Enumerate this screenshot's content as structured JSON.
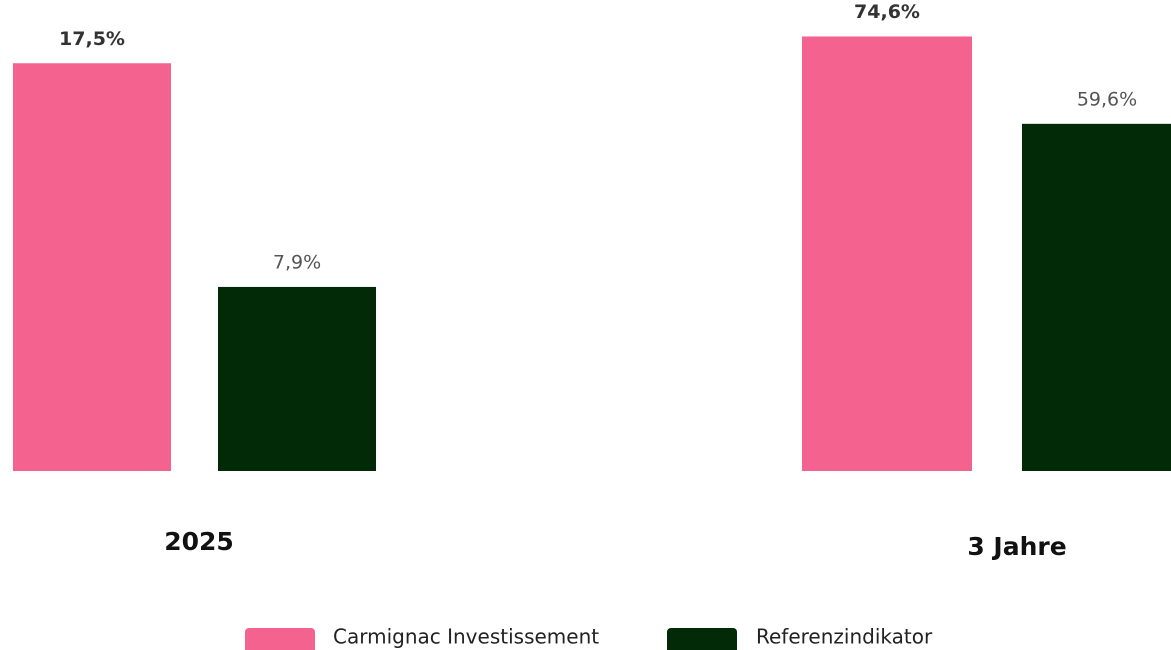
{
  "chart_data": [
    {
      "type": "bar",
      "categories": [
        "2025"
      ],
      "ylim": [
        0,
        20
      ],
      "series": [
        {
          "name": "Carmignac Investissement",
          "color": "#f4628f",
          "values": [
            17.5
          ],
          "value_labels": [
            "17,5%"
          ]
        },
        {
          "name": "Referenzindikator",
          "color": "#022a07",
          "values": [
            7.9
          ],
          "value_labels": [
            "7,9%"
          ]
        }
      ]
    },
    {
      "type": "bar",
      "categories": [
        "3 Jahre"
      ],
      "ylim": [
        0,
        80
      ],
      "series": [
        {
          "color": "#f4628f",
          "values": [
            74.6
          ],
          "value_labels": [
            "74,6%"
          ]
        },
        {
          "color": "#022a07",
          "values": [
            59.6
          ],
          "value_labels": [
            "59,6%"
          ]
        }
      ]
    }
  ]
}
